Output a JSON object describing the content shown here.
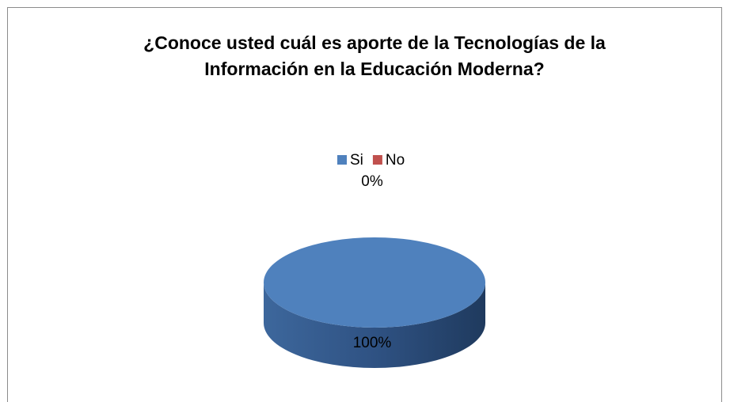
{
  "chart_data": {
    "type": "pie",
    "title": "¿Conoce usted cuál es aporte de la Tecnologías de la Información en la Educación Moderna?",
    "categories": [
      "Si",
      "No"
    ],
    "values": [
      100,
      0
    ],
    "value_labels": [
      "100%",
      "0%"
    ],
    "colors": [
      "#4f81bd",
      "#c0504d"
    ],
    "legend": "top"
  }
}
